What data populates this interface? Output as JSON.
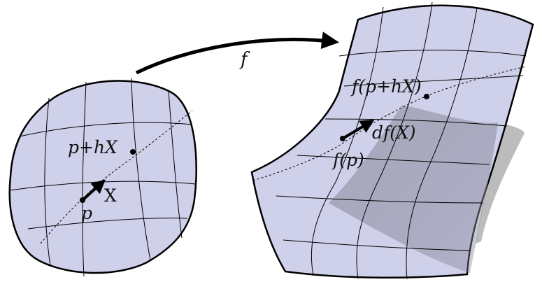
{
  "labels": {
    "map": "f",
    "left_point_p": "p",
    "left_point_p_plus_hx": "p+hX",
    "left_vector": "X",
    "right_point_fp": "f(p)",
    "right_point_f_p_plus_hx": "f(p+hX)",
    "right_vector": "df(X)"
  }
}
